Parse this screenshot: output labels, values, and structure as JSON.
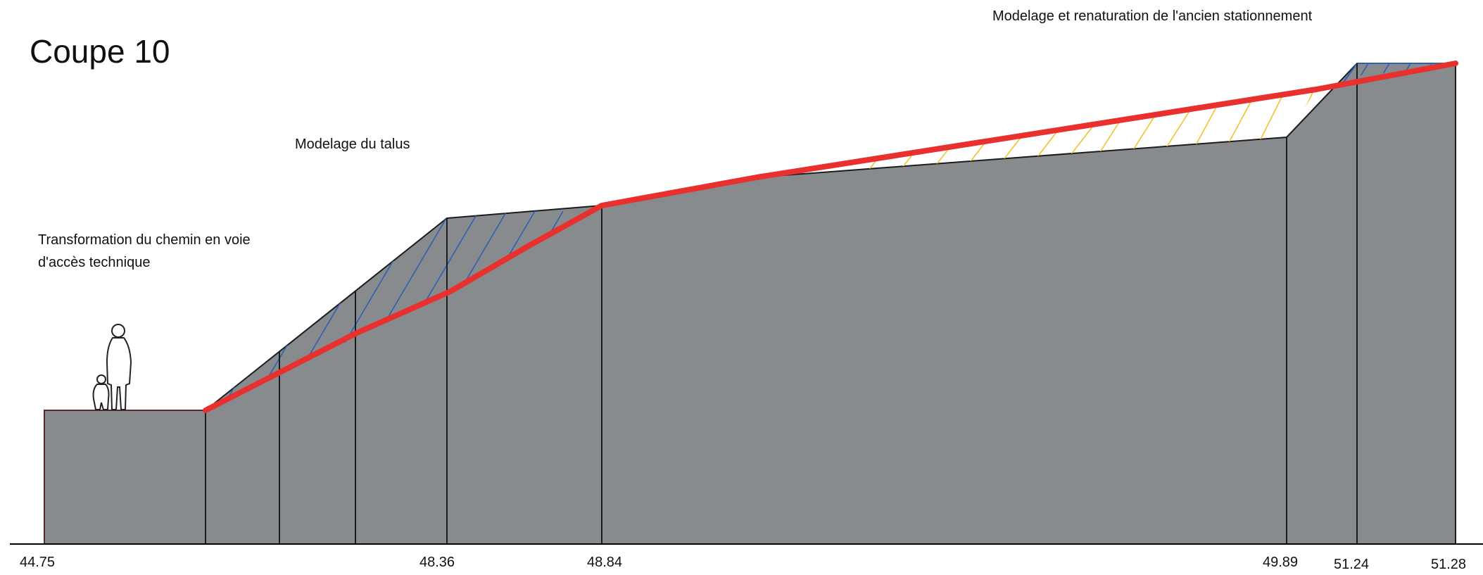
{
  "title": "Coupe 10",
  "annotations": {
    "path_line1": "Transformation du chemin en voie",
    "path_line2": "d'accès technique",
    "slope": "Modelage du talus",
    "parking": "Modelage et renaturation de l'ancien stationnement"
  },
  "elevations": [
    "44.75",
    "48.36",
    "48.84",
    "49.89",
    "51.24",
    "51.28"
  ],
  "colors": {
    "terrain_fill": "#878b8e",
    "outline": "#1c1c1c",
    "new_profile": "#e8312f",
    "cut_hatch": "#2f5fb5",
    "fill_hatch": "#f2c12e",
    "ground_line": "#000000",
    "background": "#ffffff"
  },
  "icons": {
    "people": "adult-and-child-silhouette-icon"
  }
}
